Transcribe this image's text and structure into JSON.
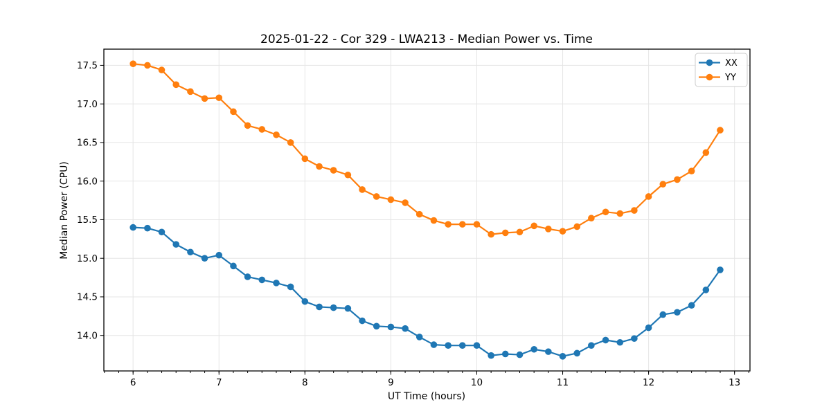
{
  "chart_data": {
    "type": "line",
    "title": "2025-01-22 - Cor 329 - LWA213 - Median Power vs. Time",
    "xlabel": "UT Time (hours)",
    "ylabel": "Median Power (CPU)",
    "xlim": [
      5.66,
      13.18
    ],
    "ylim": [
      13.54,
      17.71
    ],
    "xticks": [
      6,
      7,
      8,
      9,
      10,
      11,
      12,
      13
    ],
    "yticks": [
      14.0,
      14.5,
      15.0,
      15.5,
      16.0,
      16.5,
      17.0,
      17.5
    ],
    "x_minor_step": 0.166667,
    "grid": true,
    "grid_color": "#e5e5e5",
    "spine_color": "#000000",
    "legend_position": "upper right",
    "x": [
      6,
      6.167,
      6.333,
      6.5,
      6.667,
      6.833,
      7,
      7.167,
      7.333,
      7.5,
      7.667,
      7.833,
      8,
      8.167,
      8.333,
      8.5,
      8.667,
      8.833,
      9,
      9.167,
      9.333,
      9.5,
      9.667,
      9.833,
      10,
      10.167,
      10.333,
      10.5,
      10.667,
      10.833,
      11,
      11.167,
      11.333,
      11.5,
      11.667,
      11.833,
      12,
      12.167,
      12.333,
      12.5,
      12.667,
      12.833
    ],
    "series": [
      {
        "name": "XX",
        "color": "#1f77b4",
        "values": [
          15.4,
          15.39,
          15.34,
          15.18,
          15.08,
          15.0,
          15.04,
          14.9,
          14.76,
          14.72,
          14.68,
          14.63,
          14.44,
          14.37,
          14.36,
          14.35,
          14.19,
          14.12,
          14.11,
          14.09,
          13.98,
          13.88,
          13.87,
          13.87,
          13.87,
          13.74,
          13.76,
          13.75,
          13.82,
          13.79,
          13.73,
          13.77,
          13.87,
          13.94,
          13.91,
          13.96,
          14.1,
          14.27,
          14.3,
          14.39,
          14.59,
          14.85
        ]
      },
      {
        "name": "YY",
        "color": "#ff7f0e",
        "values": [
          17.52,
          17.5,
          17.44,
          17.25,
          17.16,
          17.07,
          17.08,
          16.9,
          16.72,
          16.67,
          16.6,
          16.5,
          16.29,
          16.19,
          16.14,
          16.08,
          15.89,
          15.8,
          15.76,
          15.72,
          15.57,
          15.49,
          15.44,
          15.44,
          15.44,
          15.31,
          15.33,
          15.34,
          15.42,
          15.38,
          15.35,
          15.41,
          15.52,
          15.6,
          15.58,
          15.62,
          15.8,
          15.96,
          16.02,
          16.13,
          16.37,
          16.66
        ]
      }
    ]
  }
}
